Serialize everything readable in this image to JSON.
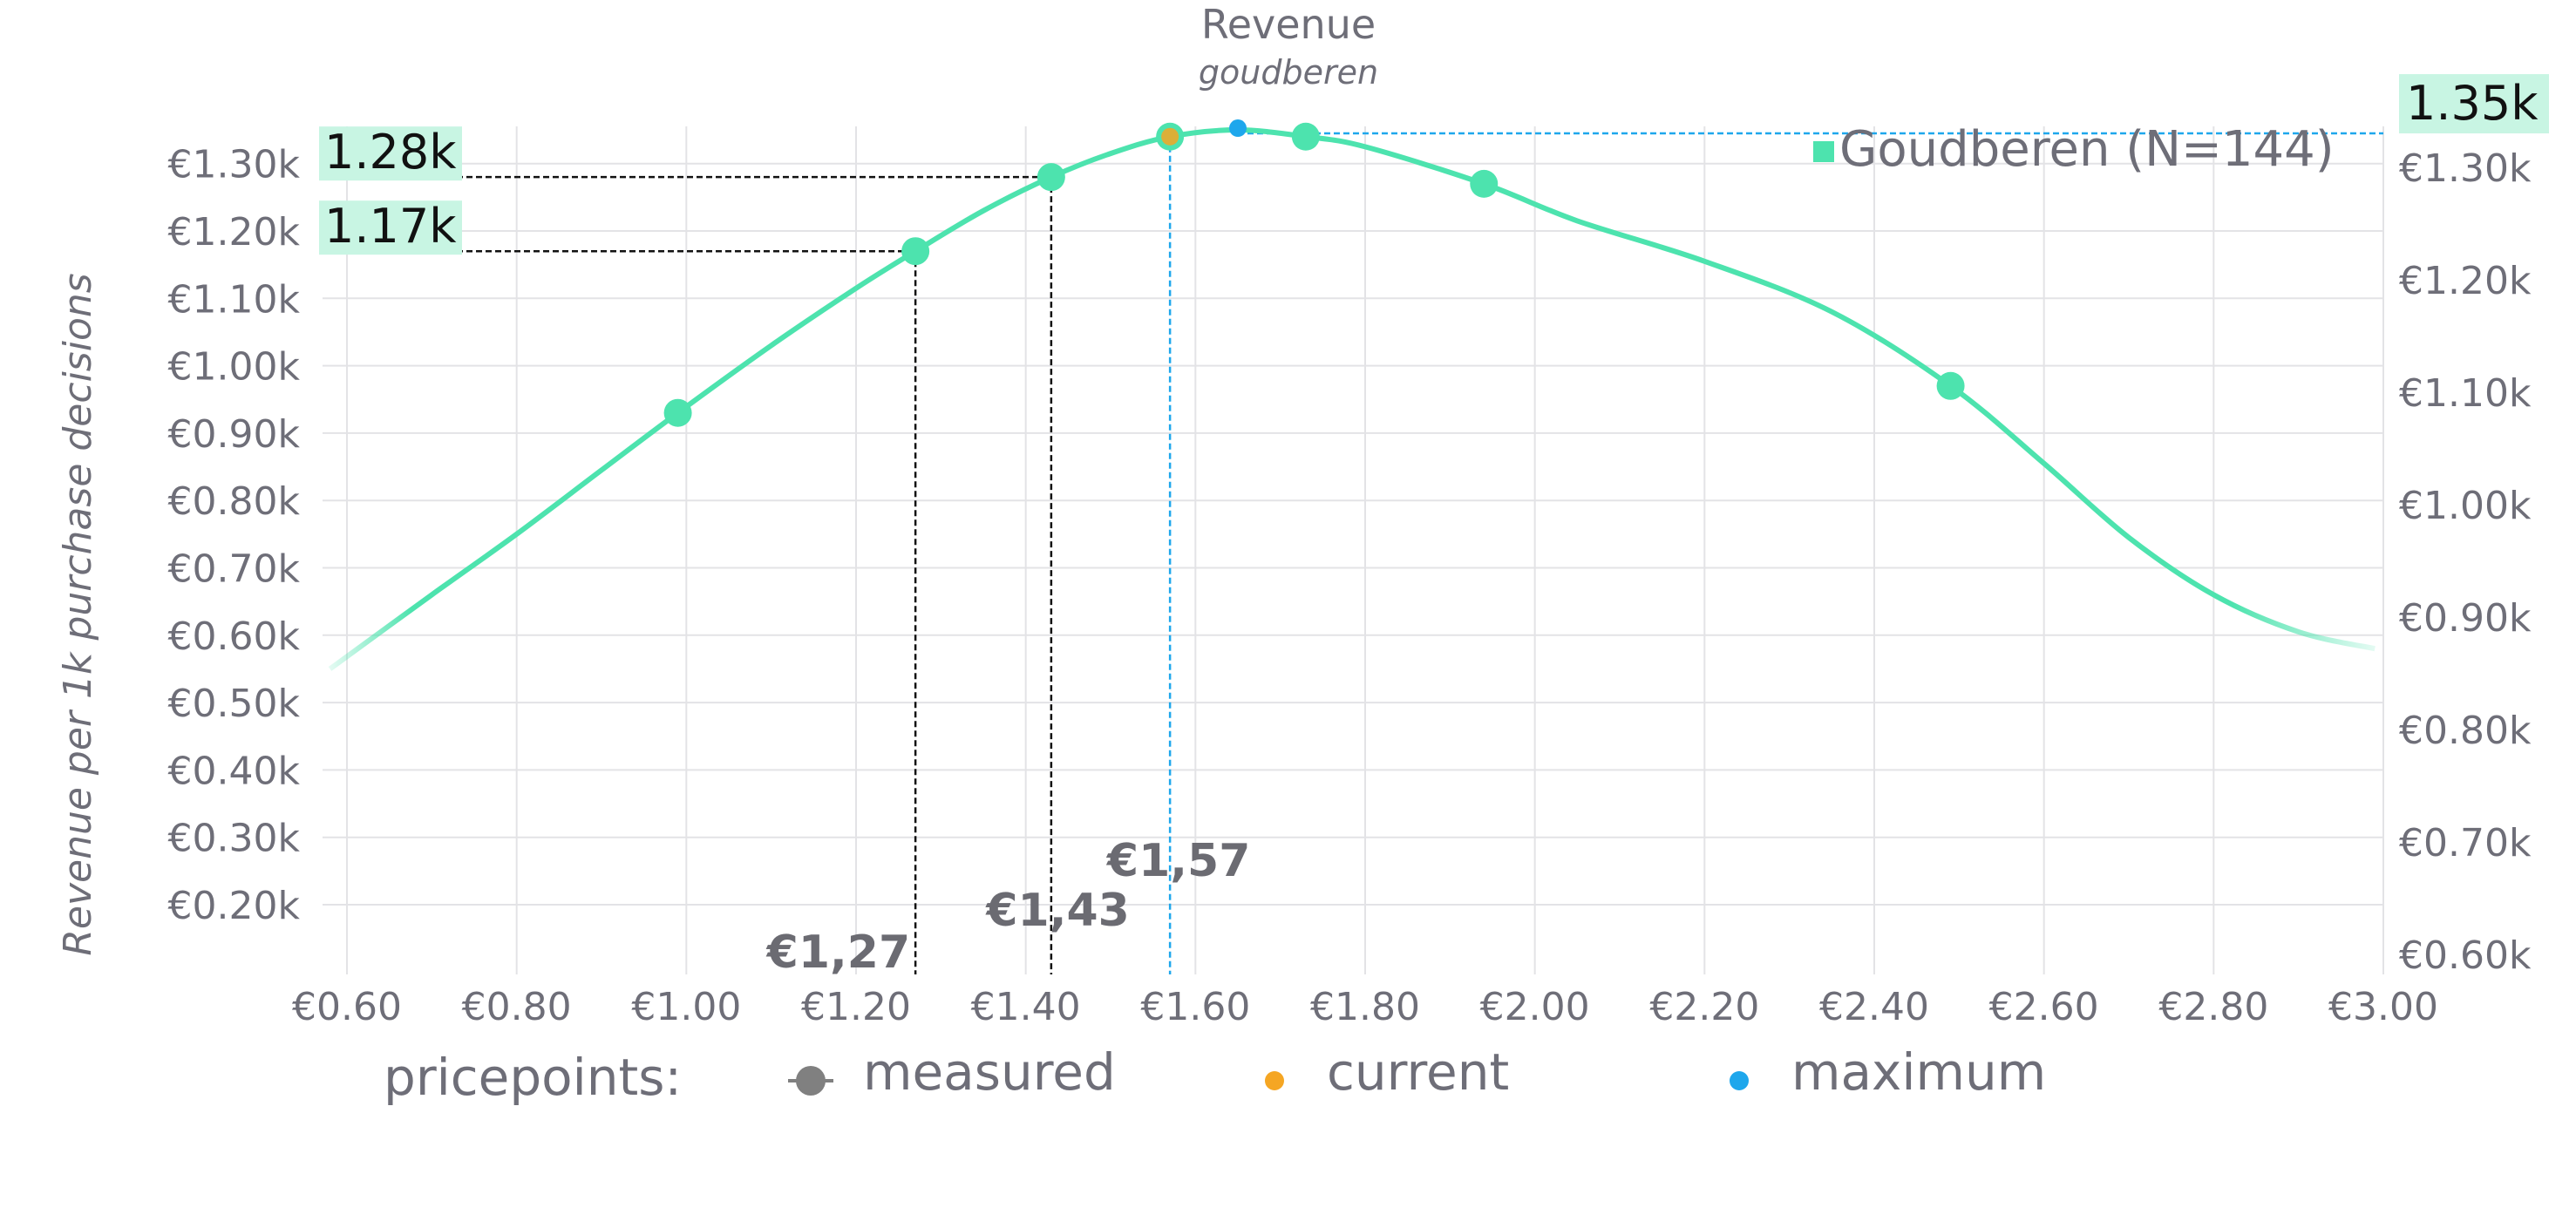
{
  "chart_data": {
    "type": "line",
    "title": "Revenue",
    "subtitle": "goudberen",
    "ylabel": "Revenue per 1k purchase decisions",
    "xlim": [
      0.6,
      3.0
    ],
    "ylim_left": [
      0.15,
      1.35
    ],
    "ylim_right": [
      0.6,
      1.35
    ],
    "x_ticks": [
      "€0.60",
      "€0.80",
      "€1.00",
      "€1.20",
      "€1.40",
      "€1.60",
      "€1.80",
      "€2.00",
      "€2.20",
      "€2.40",
      "€2.60",
      "€2.80",
      "€3.00"
    ],
    "y_ticks_left": [
      "€0.20k",
      "€0.30k",
      "€0.40k",
      "€0.50k",
      "€0.60k",
      "€0.70k",
      "€0.80k",
      "€0.90k",
      "€1.00k",
      "€1.10k",
      "€1.20k",
      "€1.30k"
    ],
    "y_ticks_right": [
      "€0.60k",
      "€0.70k",
      "€0.80k",
      "€0.90k",
      "€1.00k",
      "€1.10k",
      "€1.20k",
      "€1.30k"
    ],
    "grid": true,
    "legend_position": "top-right",
    "series": [
      {
        "name": "Goudberen (N=144)",
        "legend_label": "Goudberen (N=144)",
        "color": "#4de3ae",
        "curve": [
          {
            "x": 0.58,
            "y": 0.55
          },
          {
            "x": 0.7,
            "y": 0.66
          },
          {
            "x": 0.8,
            "y": 0.75
          },
          {
            "x": 0.9,
            "y": 0.845
          },
          {
            "x": 0.99,
            "y": 0.93
          },
          {
            "x": 1.1,
            "y": 1.03
          },
          {
            "x": 1.2,
            "y": 1.115
          },
          {
            "x": 1.27,
            "y": 1.17
          },
          {
            "x": 1.35,
            "y": 1.23
          },
          {
            "x": 1.43,
            "y": 1.28
          },
          {
            "x": 1.5,
            "y": 1.315
          },
          {
            "x": 1.57,
            "y": 1.34
          },
          {
            "x": 1.65,
            "y": 1.35
          },
          {
            "x": 1.73,
            "y": 1.34
          },
          {
            "x": 1.8,
            "y": 1.325
          },
          {
            "x": 1.94,
            "y": 1.27
          },
          {
            "x": 2.05,
            "y": 1.215
          },
          {
            "x": 2.2,
            "y": 1.155
          },
          {
            "x": 2.35,
            "y": 1.08
          },
          {
            "x": 2.49,
            "y": 0.97
          },
          {
            "x": 2.6,
            "y": 0.855
          },
          {
            "x": 2.7,
            "y": 0.745
          },
          {
            "x": 2.8,
            "y": 0.66
          },
          {
            "x": 2.9,
            "y": 0.605
          },
          {
            "x": 2.99,
            "y": 0.58
          }
        ],
        "measured_points": [
          {
            "x": 0.99,
            "y": 0.93
          },
          {
            "x": 1.27,
            "y": 1.17
          },
          {
            "x": 1.43,
            "y": 1.28
          },
          {
            "x": 1.57,
            "y": 1.34
          },
          {
            "x": 1.73,
            "y": 1.34
          },
          {
            "x": 1.94,
            "y": 1.27
          },
          {
            "x": 2.49,
            "y": 0.97
          }
        ]
      }
    ],
    "current_point": {
      "x": 1.57,
      "y": 1.34,
      "color": "#f5a623"
    },
    "maximum_point": {
      "x": 1.65,
      "y": 1.35,
      "color": "#1ea7ec"
    },
    "annotations": {
      "price_labels": [
        {
          "x": 1.27,
          "y": 1.17,
          "text": "€1,27"
        },
        {
          "x": 1.43,
          "y": 1.28,
          "text": "€1,43"
        },
        {
          "x": 1.57,
          "y": 1.35,
          "text": "€1,57"
        }
      ],
      "value_callouts": [
        {
          "y": 1.28,
          "text": "1.28k",
          "side": "left"
        },
        {
          "y": 1.17,
          "text": "1.17k",
          "side": "left"
        },
        {
          "y": 1.35,
          "text": "1.35k",
          "side": "right"
        }
      ],
      "callout_color": "#c8f5e3"
    },
    "bottom_legend": {
      "prefix": "pricepoints:",
      "items": [
        {
          "label": "measured",
          "color": "#808080"
        },
        {
          "label": "current",
          "color": "#f5a623"
        },
        {
          "label": "maximum",
          "color": "#1ea7ec"
        }
      ]
    }
  }
}
